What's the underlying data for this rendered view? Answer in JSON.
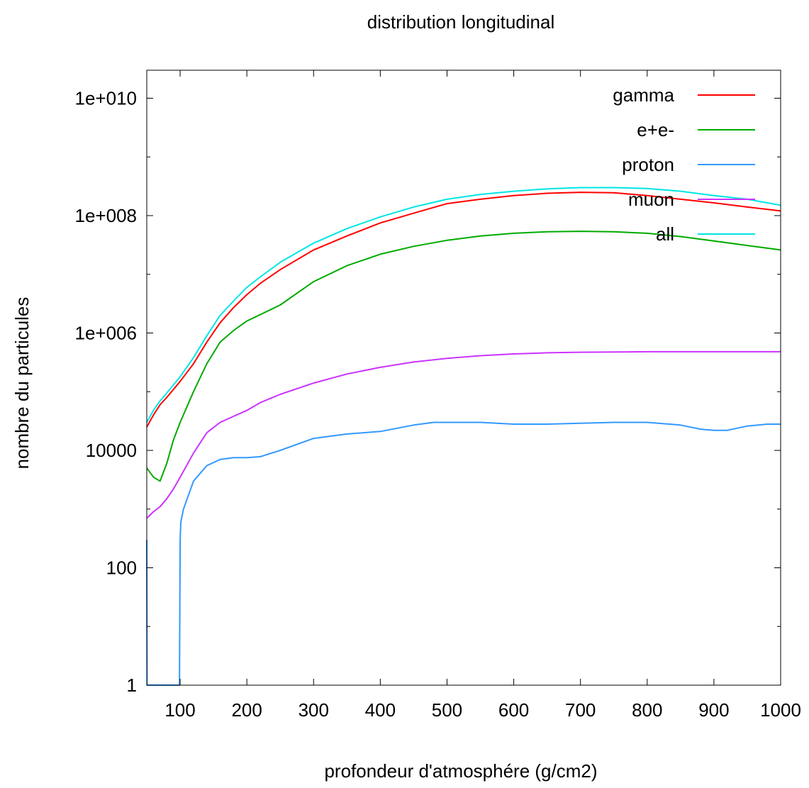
{
  "chart_data": {
    "type": "line",
    "title": "distribution longitudinal",
    "xlabel": "profondeur d'atmosphére (g/cm2)",
    "ylabel": "nombre du particules",
    "xlim": [
      50,
      1000
    ],
    "ylim": [
      1,
      30000000000
    ],
    "yscale": "log",
    "xticks": [
      100,
      200,
      300,
      400,
      500,
      600,
      700,
      800,
      900,
      1000
    ],
    "xtick_labels": [
      "100",
      "200",
      "300",
      "400",
      "500",
      "600",
      "700",
      "800",
      "900",
      "1000"
    ],
    "yticks": [
      1,
      100,
      10000,
      1000000,
      100000000,
      10000000000
    ],
    "ytick_labels": [
      "1",
      "100",
      "10000",
      "1e+006",
      "1e+008",
      "1e+010"
    ],
    "grid": false,
    "legend_position": "top-right",
    "series": [
      {
        "name": "gamma",
        "color": "#ff0000",
        "x": [
          50,
          60,
          70,
          80,
          100,
          120,
          140,
          160,
          180,
          200,
          220,
          250,
          300,
          350,
          400,
          450,
          500,
          550,
          600,
          650,
          700,
          750,
          800,
          850,
          900,
          950,
          1000
        ],
        "y": [
          25000,
          40000,
          60000,
          80000,
          150000,
          300000,
          700000,
          1500000,
          2700000,
          4500000,
          7000000,
          12000000,
          26000000,
          45000000,
          75000000,
          110000000,
          160000000,
          190000000,
          220000000,
          240000000,
          250000000,
          245000000,
          220000000,
          190000000,
          165000000,
          140000000,
          120000000
        ]
      },
      {
        "name": "e+e-",
        "color": "#00aa00",
        "x": [
          50,
          60,
          70,
          80,
          90,
          100,
          120,
          140,
          160,
          180,
          200,
          250,
          300,
          350,
          400,
          450,
          500,
          550,
          600,
          650,
          700,
          750,
          800,
          850,
          900,
          950,
          1000
        ],
        "y": [
          5000,
          3500,
          3000,
          6000,
          15000,
          30000,
          100000,
          300000,
          700000,
          1100000,
          1600000,
          3000000,
          7500000,
          14000000,
          22000000,
          30000000,
          38000000,
          45000000,
          50000000,
          53000000,
          54000000,
          53000000,
          50000000,
          44000000,
          37000000,
          31000000,
          26000000
        ]
      },
      {
        "name": "proton",
        "color": "#3399ff",
        "x": [
          50,
          50.5,
          51,
          99,
          100,
          101,
          105,
          120,
          140,
          160,
          180,
          200,
          220,
          250,
          300,
          350,
          400,
          450,
          480,
          550,
          600,
          650,
          700,
          750,
          800,
          850,
          880,
          900,
          920,
          950,
          980,
          1000
        ],
        "y": [
          300,
          1,
          1,
          1,
          300,
          600,
          1000,
          3000,
          5500,
          7000,
          7500,
          7500,
          7800,
          10000,
          16000,
          19000,
          21000,
          27000,
          30000,
          30000,
          28000,
          28000,
          29000,
          30000,
          30000,
          27000,
          23000,
          22000,
          22000,
          26000,
          28000,
          28000
        ]
      },
      {
        "name": "muon",
        "color": "#cc33ff",
        "x": [
          50,
          60,
          70,
          80,
          90,
          100,
          120,
          140,
          160,
          180,
          200,
          220,
          250,
          300,
          350,
          400,
          450,
          500,
          550,
          600,
          650,
          700,
          800,
          900,
          1000
        ],
        "y": [
          700,
          900,
          1100,
          1500,
          2200,
          3500,
          9000,
          20000,
          30000,
          38000,
          48000,
          65000,
          90000,
          140000,
          200000,
          260000,
          320000,
          370000,
          410000,
          440000,
          460000,
          470000,
          480000,
          480000,
          480000
        ]
      },
      {
        "name": "all",
        "color": "#00e5e5",
        "x": [
          50,
          60,
          70,
          80,
          100,
          120,
          140,
          160,
          180,
          200,
          220,
          250,
          300,
          350,
          400,
          450,
          500,
          550,
          600,
          650,
          700,
          750,
          800,
          850,
          900,
          950,
          1000
        ],
        "y": [
          30000,
          48000,
          70000,
          95000,
          180000,
          380000,
          900000,
          2000000,
          3500000,
          6000000,
          9000000,
          16000000,
          34000000,
          60000000,
          95000000,
          140000000,
          190000000,
          230000000,
          260000000,
          285000000,
          300000000,
          300000000,
          290000000,
          260000000,
          220000000,
          190000000,
          150000000
        ]
      }
    ]
  }
}
